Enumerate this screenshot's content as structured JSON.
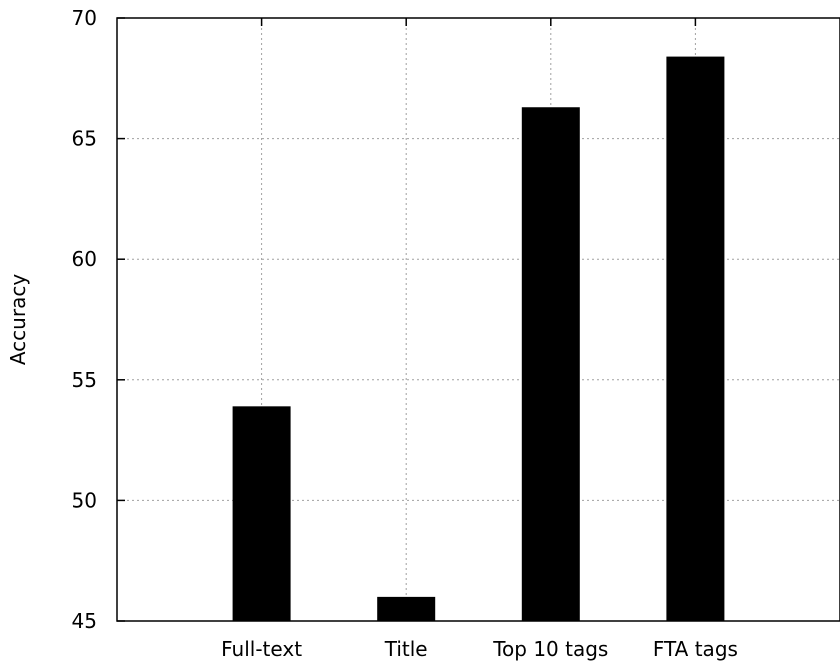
{
  "chart_data": {
    "type": "bar",
    "title": "",
    "xlabel": "",
    "ylabel": "Accuracy",
    "categories": [
      "Full-text",
      "Title",
      "Top 10 tags",
      "FTA tags"
    ],
    "values": [
      53.9,
      46.0,
      66.3,
      68.4
    ],
    "ylim": [
      45,
      70
    ],
    "yticks": [
      "45",
      "50",
      "55",
      "60",
      "65",
      "70"
    ],
    "grid": true,
    "legend": "none",
    "bar_color": "#000000",
    "grid_color": "#a0a0a0"
  }
}
